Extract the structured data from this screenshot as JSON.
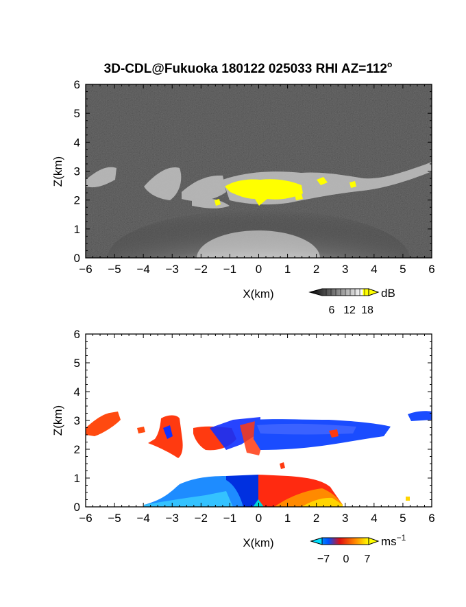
{
  "title": {
    "text": "3D-CDL@Fukuoka 180122 025033 RHI AZ=112",
    "degree": "o"
  },
  "chart_data": [
    {
      "type": "heatmap",
      "name": "signal-intensity",
      "xlabel": "X(km)",
      "ylabel": "Z(km)",
      "xlim": [
        -6,
        6
      ],
      "ylim": [
        0,
        6
      ],
      "xticks": [
        "−6",
        "−5",
        "−4",
        "−3",
        "−2",
        "−1",
        "0",
        "1",
        "2",
        "3",
        "4",
        "5",
        "6"
      ],
      "yticks": [
        "0",
        "1",
        "2",
        "3",
        "4",
        "5",
        "6"
      ],
      "colorbar": {
        "ticks": [
          "6",
          "12",
          "18"
        ],
        "unit": "dB",
        "colormap": "grayscale with yellow for high values"
      },
      "background": "#2e2e2e",
      "features": [
        {
          "desc": "cloud layer",
          "x_range": [
            -6,
            6
          ],
          "z_range": [
            1.9,
            3.3
          ]
        },
        {
          "desc": "strong return (yellow)",
          "x_range": [
            -1.0,
            1.8
          ],
          "z_range": [
            2.0,
            2.7
          ]
        },
        {
          "desc": "near-ground fan",
          "x_range": [
            -4,
            4
          ],
          "z_range": [
            0,
            1.0
          ]
        }
      ]
    },
    {
      "type": "heatmap",
      "name": "doppler-velocity",
      "xlabel": "X(km)",
      "ylabel": "Z(km)",
      "xlim": [
        -6,
        6
      ],
      "ylim": [
        0,
        6
      ],
      "xticks": [
        "−6",
        "−5",
        "−4",
        "−3",
        "−2",
        "−1",
        "0",
        "1",
        "2",
        "3",
        "4",
        "5",
        "6"
      ],
      "yticks": [
        "0",
        "1",
        "2",
        "3",
        "4",
        "5",
        "6"
      ],
      "colorbar": {
        "ticks": [
          "−7",
          "0",
          "7"
        ],
        "unit": "ms",
        "unit_exp": "−1",
        "colormap": "cyan-blue-red-yellow"
      },
      "features": [
        {
          "desc": "negative velocities (blue) left of origin near ground",
          "x_range": [
            -4,
            0
          ],
          "z_range": [
            0,
            1.0
          ]
        },
        {
          "desc": "positive velocities (red-yellow) right of origin near ground",
          "x_range": [
            0,
            3.2
          ],
          "z_range": [
            0,
            1.0
          ]
        },
        {
          "desc": "upper layer mixed red/blue",
          "x_range": [
            -6,
            6
          ],
          "z_range": [
            1.8,
            3.3
          ]
        }
      ]
    }
  ]
}
